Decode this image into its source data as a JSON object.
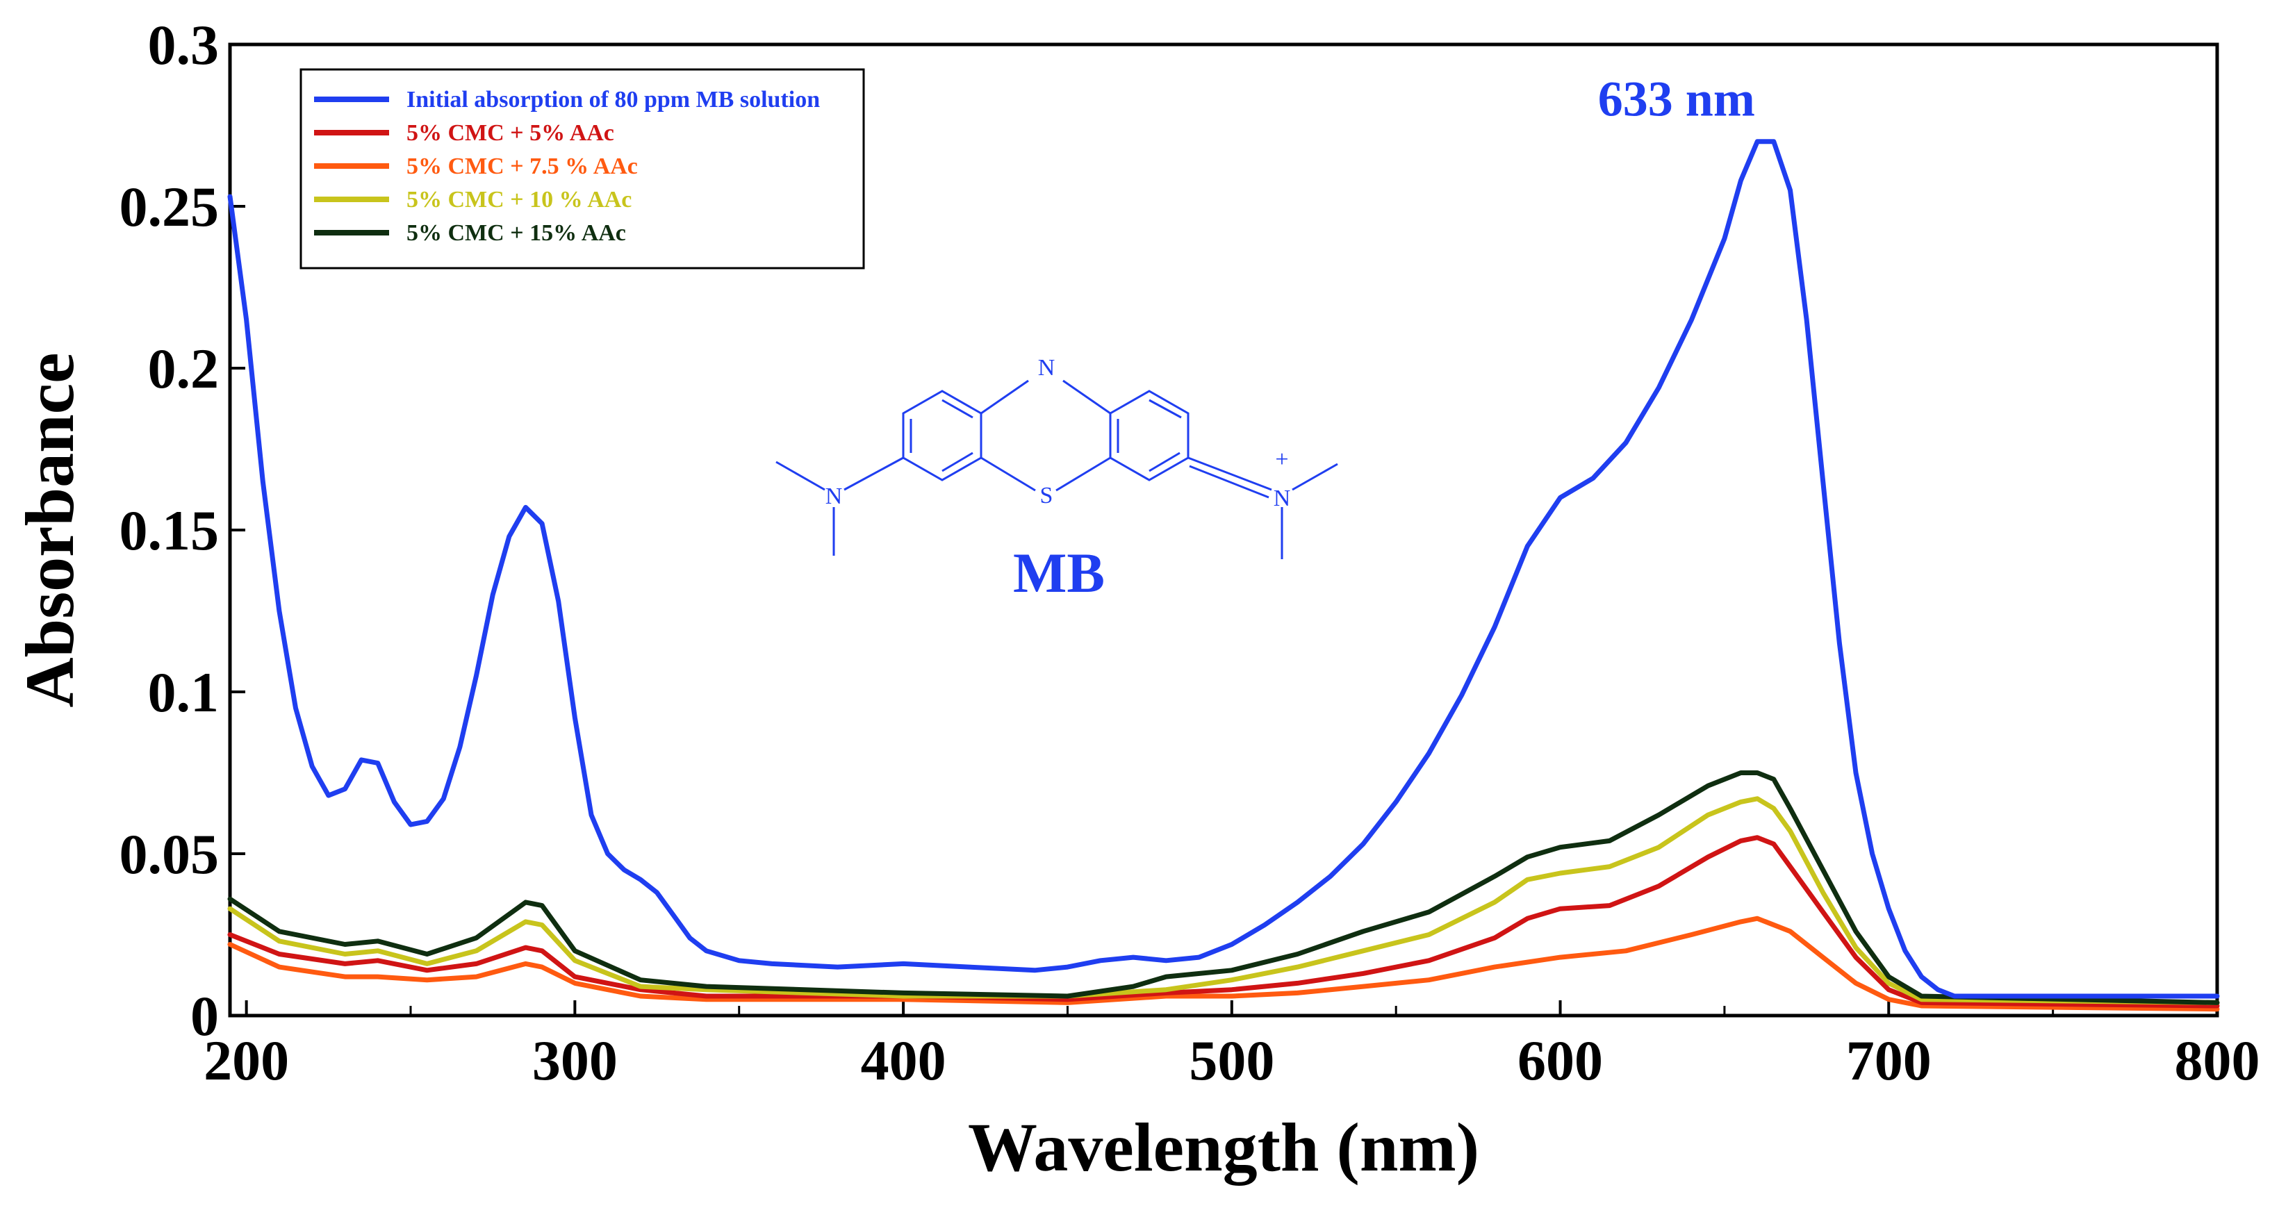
{
  "chart_data": {
    "type": "line",
    "xlabel": "Wavelength (nm)",
    "ylabel": "Absorbance",
    "xlim": [
      195,
      800
    ],
    "ylim": [
      0,
      0.3
    ],
    "x_ticks": [
      200,
      300,
      400,
      500,
      600,
      700,
      800
    ],
    "y_ticks": [
      0,
      0.05,
      0.1,
      0.15,
      0.2,
      0.25,
      0.3
    ],
    "y_tick_labels": [
      "0",
      "0.05",
      "0.1",
      "0.15",
      "0.2",
      "0.25",
      "0.3"
    ],
    "grid": false,
    "legend_position": "top-left",
    "series": [
      {
        "name": "Initial absorption of 80 ppm MB solution",
        "color": "#1f3ef0",
        "points": [
          [
            195,
            0.253
          ],
          [
            200,
            0.215
          ],
          [
            205,
            0.165
          ],
          [
            210,
            0.125
          ],
          [
            215,
            0.095
          ],
          [
            220,
            0.077
          ],
          [
            225,
            0.068
          ],
          [
            230,
            0.07
          ],
          [
            235,
            0.079
          ],
          [
            240,
            0.078
          ],
          [
            245,
            0.066
          ],
          [
            250,
            0.059
          ],
          [
            255,
            0.06
          ],
          [
            260,
            0.067
          ],
          [
            265,
            0.083
          ],
          [
            270,
            0.105
          ],
          [
            275,
            0.13
          ],
          [
            280,
            0.148
          ],
          [
            285,
            0.157
          ],
          [
            290,
            0.152
          ],
          [
            295,
            0.128
          ],
          [
            300,
            0.092
          ],
          [
            305,
            0.062
          ],
          [
            310,
            0.05
          ],
          [
            315,
            0.045
          ],
          [
            320,
            0.042
          ],
          [
            325,
            0.038
          ],
          [
            330,
            0.031
          ],
          [
            335,
            0.024
          ],
          [
            340,
            0.02
          ],
          [
            350,
            0.017
          ],
          [
            360,
            0.016
          ],
          [
            380,
            0.015
          ],
          [
            400,
            0.016
          ],
          [
            420,
            0.015
          ],
          [
            440,
            0.014
          ],
          [
            450,
            0.015
          ],
          [
            460,
            0.017
          ],
          [
            470,
            0.018
          ],
          [
            480,
            0.017
          ],
          [
            490,
            0.018
          ],
          [
            500,
            0.022
          ],
          [
            510,
            0.028
          ],
          [
            520,
            0.035
          ],
          [
            530,
            0.043
          ],
          [
            540,
            0.053
          ],
          [
            550,
            0.066
          ],
          [
            560,
            0.081
          ],
          [
            570,
            0.099
          ],
          [
            580,
            0.12
          ],
          [
            590,
            0.145
          ],
          [
            600,
            0.16
          ],
          [
            610,
            0.166
          ],
          [
            620,
            0.177
          ],
          [
            630,
            0.194
          ],
          [
            640,
            0.215
          ],
          [
            650,
            0.24
          ],
          [
            655,
            0.258
          ],
          [
            660,
            0.27
          ],
          [
            665,
            0.27
          ],
          [
            670,
            0.255
          ],
          [
            675,
            0.215
          ],
          [
            680,
            0.165
          ],
          [
            685,
            0.115
          ],
          [
            690,
            0.075
          ],
          [
            695,
            0.05
          ],
          [
            700,
            0.033
          ],
          [
            705,
            0.02
          ],
          [
            710,
            0.012
          ],
          [
            715,
            0.008
          ],
          [
            720,
            0.006
          ],
          [
            740,
            0.006
          ],
          [
            800,
            0.006
          ]
        ]
      },
      {
        "name": "5% CMC + 5% AAc",
        "color": "#d01414",
        "points": [
          [
            195,
            0.025
          ],
          [
            210,
            0.019
          ],
          [
            230,
            0.016
          ],
          [
            240,
            0.017
          ],
          [
            255,
            0.014
          ],
          [
            270,
            0.016
          ],
          [
            285,
            0.021
          ],
          [
            290,
            0.02
          ],
          [
            300,
            0.012
          ],
          [
            320,
            0.008
          ],
          [
            340,
            0.006
          ],
          [
            400,
            0.006
          ],
          [
            450,
            0.005
          ],
          [
            480,
            0.007
          ],
          [
            500,
            0.008
          ],
          [
            520,
            0.01
          ],
          [
            540,
            0.013
          ],
          [
            560,
            0.017
          ],
          [
            580,
            0.024
          ],
          [
            590,
            0.03
          ],
          [
            600,
            0.033
          ],
          [
            615,
            0.034
          ],
          [
            630,
            0.04
          ],
          [
            645,
            0.049
          ],
          [
            655,
            0.054
          ],
          [
            660,
            0.055
          ],
          [
            665,
            0.053
          ],
          [
            670,
            0.046
          ],
          [
            680,
            0.032
          ],
          [
            690,
            0.018
          ],
          [
            700,
            0.008
          ],
          [
            710,
            0.004
          ],
          [
            800,
            0.003
          ]
        ]
      },
      {
        "name": "5% CMC + 7.5 % AAc",
        "color": "#ff5a10",
        "points": [
          [
            195,
            0.022
          ],
          [
            210,
            0.015
          ],
          [
            230,
            0.012
          ],
          [
            240,
            0.012
          ],
          [
            255,
            0.011
          ],
          [
            270,
            0.012
          ],
          [
            285,
            0.016
          ],
          [
            290,
            0.015
          ],
          [
            300,
            0.01
          ],
          [
            320,
            0.006
          ],
          [
            340,
            0.005
          ],
          [
            400,
            0.005
          ],
          [
            450,
            0.004
          ],
          [
            480,
            0.006
          ],
          [
            500,
            0.006
          ],
          [
            520,
            0.007
          ],
          [
            540,
            0.009
          ],
          [
            560,
            0.011
          ],
          [
            580,
            0.015
          ],
          [
            600,
            0.018
          ],
          [
            620,
            0.02
          ],
          [
            640,
            0.025
          ],
          [
            655,
            0.029
          ],
          [
            660,
            0.03
          ],
          [
            670,
            0.026
          ],
          [
            680,
            0.018
          ],
          [
            690,
            0.01
          ],
          [
            700,
            0.005
          ],
          [
            710,
            0.003
          ],
          [
            800,
            0.002
          ]
        ]
      },
      {
        "name": "5% CMC + 10 % AAc",
        "color": "#c8c41c",
        "points": [
          [
            195,
            0.033
          ],
          [
            210,
            0.023
          ],
          [
            230,
            0.019
          ],
          [
            240,
            0.02
          ],
          [
            255,
            0.016
          ],
          [
            270,
            0.02
          ],
          [
            285,
            0.029
          ],
          [
            290,
            0.028
          ],
          [
            300,
            0.017
          ],
          [
            320,
            0.009
          ],
          [
            340,
            0.008
          ],
          [
            400,
            0.006
          ],
          [
            450,
            0.006
          ],
          [
            480,
            0.008
          ],
          [
            500,
            0.011
          ],
          [
            520,
            0.015
          ],
          [
            540,
            0.02
          ],
          [
            560,
            0.025
          ],
          [
            580,
            0.035
          ],
          [
            590,
            0.042
          ],
          [
            600,
            0.044
          ],
          [
            615,
            0.046
          ],
          [
            630,
            0.052
          ],
          [
            645,
            0.062
          ],
          [
            655,
            0.066
          ],
          [
            660,
            0.067
          ],
          [
            665,
            0.064
          ],
          [
            670,
            0.057
          ],
          [
            680,
            0.038
          ],
          [
            690,
            0.021
          ],
          [
            700,
            0.01
          ],
          [
            710,
            0.005
          ],
          [
            800,
            0.004
          ]
        ]
      },
      {
        "name": "5% CMC + 15% AAc",
        "color": "#0f2e10",
        "points": [
          [
            195,
            0.036
          ],
          [
            210,
            0.026
          ],
          [
            230,
            0.022
          ],
          [
            240,
            0.023
          ],
          [
            255,
            0.019
          ],
          [
            270,
            0.024
          ],
          [
            285,
            0.035
          ],
          [
            290,
            0.034
          ],
          [
            300,
            0.02
          ],
          [
            320,
            0.011
          ],
          [
            340,
            0.009
          ],
          [
            400,
            0.007
          ],
          [
            450,
            0.006
          ],
          [
            470,
            0.009
          ],
          [
            480,
            0.012
          ],
          [
            500,
            0.014
          ],
          [
            520,
            0.019
          ],
          [
            540,
            0.026
          ],
          [
            560,
            0.032
          ],
          [
            580,
            0.043
          ],
          [
            590,
            0.049
          ],
          [
            600,
            0.052
          ],
          [
            615,
            0.054
          ],
          [
            630,
            0.062
          ],
          [
            645,
            0.071
          ],
          [
            655,
            0.075
          ],
          [
            660,
            0.075
          ],
          [
            665,
            0.073
          ],
          [
            670,
            0.064
          ],
          [
            680,
            0.045
          ],
          [
            690,
            0.026
          ],
          [
            700,
            0.012
          ],
          [
            710,
            0.006
          ],
          [
            800,
            0.004
          ]
        ]
      }
    ],
    "annotations": [
      {
        "text": "633 nm",
        "x": 665,
        "y": 0.278,
        "color": "#1f3ef0"
      }
    ],
    "molecule": {
      "label": "MB",
      "atom_n_top": "N",
      "atom_s": "S",
      "atom_n_left": "N",
      "atom_n_right": "N",
      "charge": "+",
      "color": "#1f3ef0"
    }
  }
}
